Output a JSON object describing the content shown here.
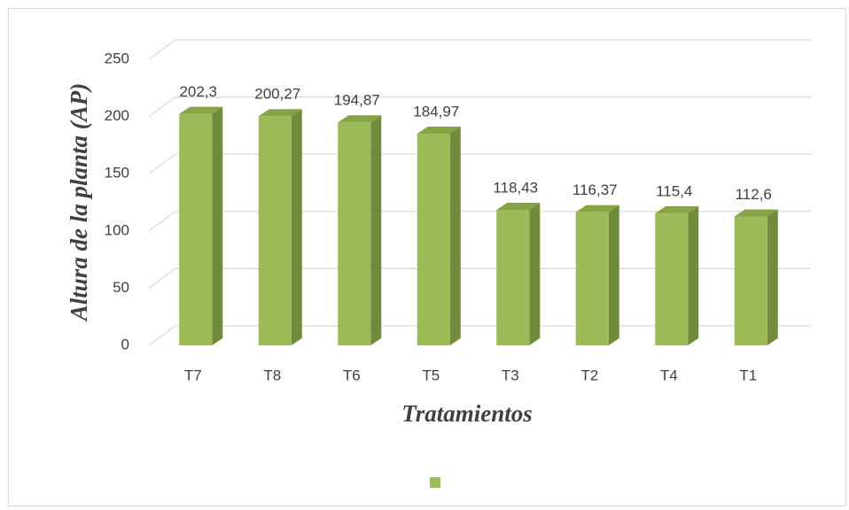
{
  "chart_data": {
    "type": "bar3d",
    "categories": [
      "T7",
      "T8",
      "T6",
      "T5",
      "T3",
      "T2",
      "T4",
      "T1"
    ],
    "values": [
      202.3,
      200.27,
      194.87,
      184.97,
      118.43,
      116.37,
      115.4,
      112.6
    ],
    "value_labels": [
      "202,3",
      "200,27",
      "194,87",
      "184,97",
      "118,43",
      "116,37",
      "115,4",
      "112,6"
    ],
    "color": "#9bbb59",
    "xlabel": "Tratamientos",
    "ylabel": "Altura de la planta (AP)",
    "ylim": [
      0,
      250
    ],
    "yticks": [
      0,
      50,
      100,
      150,
      200,
      250
    ],
    "grid": true
  }
}
